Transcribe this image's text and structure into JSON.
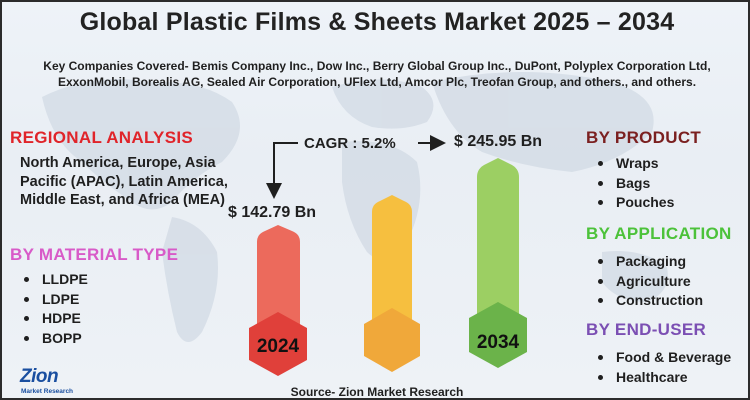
{
  "title": "Global Plastic Films & Sheets Market 2025 – 2034",
  "subtitle": "Key Companies Covered- Bemis Company Inc., Dow Inc., Berry Global Group Inc., DuPont, Polyplex Corporation Ltd, ExxonMobil, Borealis AG, Sealed Air Corporation, UFlex Ltd, Amcor Plc, Treofan Group, and others., and others.",
  "regional": {
    "heading": "REGIONAL ANALYSIS",
    "text": "North America, Europe, Asia Pacific (APAC), Latin America, Middle East, and Africa (MEA)"
  },
  "material": {
    "heading": "BY  MATERIAL TYPE",
    "items": [
      "LLDPE",
      "LDPE",
      "HDPE",
      "BOPP"
    ]
  },
  "product": {
    "heading": "BY PRODUCT",
    "items": [
      "Wraps",
      "Bags",
      "Pouches"
    ]
  },
  "application": {
    "heading": "BY APPLICATION",
    "items": [
      "Packaging",
      "Agriculture",
      "Construction"
    ]
  },
  "enduser": {
    "heading": "BY END-USER",
    "items": [
      "Food & Beverage",
      "Healthcare"
    ]
  },
  "market": {
    "cagr": "CAGR : 5.2%",
    "value_2024": "$ 142.79 Bn",
    "value_2034": "$ 245.95 Bn",
    "year_2024": "2024",
    "year_2034": "2034"
  },
  "colors": {
    "bar_2024": "#ec6a5c",
    "hex_2024": "#e0403a",
    "bar_mid": "#f6bf3f",
    "hex_mid": "#f0a83a",
    "bar_2034": "#9ccf63",
    "hex_2034": "#6bb34a"
  },
  "source": "Source- Zion Market Research",
  "logo": {
    "name": "Zion",
    "sub": "Market Research"
  }
}
